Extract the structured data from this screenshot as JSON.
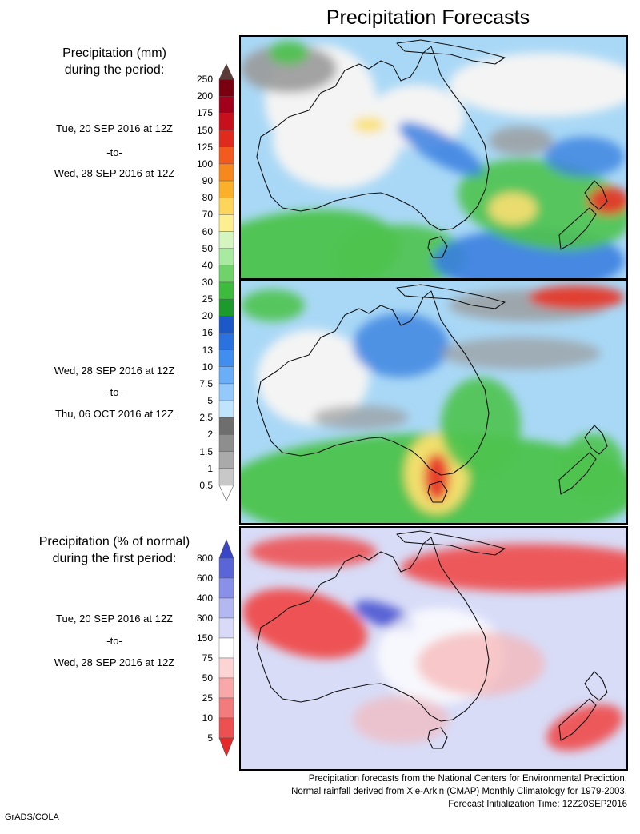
{
  "title": "Precipitation Forecasts",
  "top_section": {
    "heading_lines": [
      "Precipitation (mm)",
      "during the period:"
    ],
    "period1": {
      "start": "Tue, 20 SEP 2016 at 12Z",
      "sep": "-to-",
      "end": "Wed, 28 SEP 2016 at 12Z"
    },
    "period2": {
      "start": "Wed, 28 SEP 2016 at 12Z",
      "sep": "-to-",
      "end": "Thu, 06 OCT 2016 at 12Z"
    }
  },
  "bottom_section": {
    "heading_lines": [
      "Precipitation (% of normal)",
      "during the first period:"
    ],
    "period": {
      "start": "Tue, 20 SEP 2016 at 12Z",
      "sep": "-to-",
      "end": "Wed, 28 SEP 2016 at 12Z"
    }
  },
  "precip_scale": {
    "labels": [
      "250",
      "200",
      "175",
      "150",
      "125",
      "100",
      "90",
      "80",
      "70",
      "60",
      "50",
      "40",
      "30",
      "25",
      "20",
      "16",
      "13",
      "10",
      "7.5",
      "5",
      "2.5",
      "2",
      "1.5",
      "1",
      "0.5"
    ],
    "colors": [
      "#5a3b35",
      "#7a0010",
      "#a0001a",
      "#c8101c",
      "#e02a1e",
      "#f25a1e",
      "#f7881e",
      "#fbb02a",
      "#fdd55a",
      "#fbef90",
      "#d4f5c0",
      "#a8eaa0",
      "#6fd36a",
      "#3dbb3d",
      "#1c9a2c",
      "#1d58c8",
      "#2a72e0",
      "#3f8ef0",
      "#6aaef7",
      "#93c9fb",
      "#bfe4fb",
      "#6e6e6e",
      "#8e8e8e",
      "#aaaaaa",
      "#c8c8c8",
      "#ffffff"
    ]
  },
  "percent_scale": {
    "labels": [
      "800",
      "600",
      "400",
      "300",
      "150",
      "75",
      "50",
      "25",
      "10",
      "5"
    ],
    "colors": [
      "#3a46c8",
      "#5a66d8",
      "#8890e8",
      "#b4b8f2",
      "#d8daf8",
      "#ffffff",
      "#fcd4d4",
      "#f8a8a8",
      "#f27c7c",
      "#ec5050",
      "#e62a2a"
    ]
  },
  "map_colors": {
    "ocean_light": "#a9d8f6",
    "ocean_blue": "#3a7fe0",
    "land_grey": "#9a9a9a",
    "land_white": "#f4f4f4",
    "green": "#4cc34c",
    "red": "#e63a2a",
    "pct_red": "#ef4b4b",
    "pct_pink": "#f7b2b2",
    "pct_lavender": "#d8dcf7",
    "pct_blue": "#4a55d0"
  },
  "footer_lines": [
    "Precipitation forecasts from the National Centers for Environmental Prediction.",
    "Normal rainfall derived from Xie-Arkin (CMAP) Monthly Climatology for 1979-2003.",
    "Forecast Initialization Time: 12Z20SEP2016"
  ],
  "credit": "GrADS/COLA"
}
